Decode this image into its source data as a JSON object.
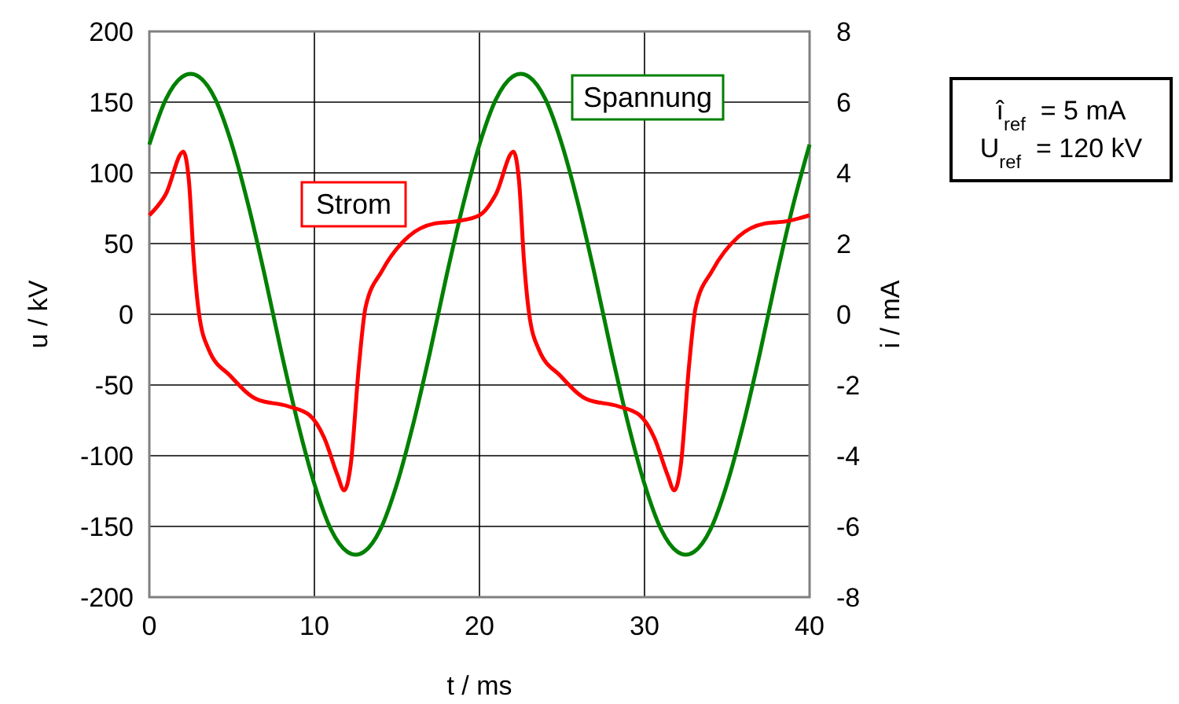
{
  "chart_data": {
    "type": "line",
    "xlabel": "t / ms",
    "ylabel": "u / kV",
    "y2label": "i / mA",
    "xlim": [
      0,
      40
    ],
    "xticks": [
      0,
      10,
      20,
      30,
      40
    ],
    "ylim": [
      -200,
      200
    ],
    "yticks": [
      -200,
      -150,
      -100,
      -50,
      0,
      50,
      100,
      150,
      200
    ],
    "y2lim": [
      -8,
      8
    ],
    "y2ticks": [
      -8,
      -6,
      -4,
      -2,
      0,
      2,
      4,
      6,
      8
    ],
    "grid": true,
    "annotations": [
      "î$_{ref}$  = 5 mA",
      "U$_{ref}$  = 120 kV"
    ],
    "series": [
      {
        "name": "Spannung",
        "color": "#008000",
        "x": [
          0,
          1,
          2,
          2.5,
          3,
          4,
          5,
          6,
          7,
          8,
          9,
          10,
          11,
          12,
          12.5,
          13,
          14,
          15,
          16,
          17,
          18,
          19,
          20,
          21,
          22,
          22.5,
          23,
          24,
          25,
          26,
          27,
          28,
          29,
          30,
          31,
          32,
          32.5,
          33,
          34,
          35,
          36,
          37,
          38,
          39,
          40
        ],
        "values": [
          120,
          152,
          168,
          170,
          168,
          152,
          120,
          77,
          27,
          -27,
          -77,
          -120,
          -152,
          -168,
          -170,
          -168,
          -152,
          -120,
          -77,
          -27,
          27,
          77,
          120,
          152,
          168,
          170,
          168,
          152,
          120,
          77,
          27,
          -27,
          -77,
          -120,
          -152,
          -168,
          -170,
          -168,
          -152,
          -120,
          -77,
          -27,
          27,
          77,
          120
        ]
      },
      {
        "name": "Strom",
        "color": "#ff0000",
        "axis": "y2",
        "x": [
          0,
          1,
          2.06,
          2.4,
          2.7,
          3.0,
          3.6,
          4.9,
          6.5,
          8.4,
          9.7,
          10.6,
          11.4,
          11.8,
          12.2,
          12.7,
          13.1,
          14.1,
          15.7,
          17.3,
          18.6,
          20,
          21,
          22.06,
          22.4,
          22.7,
          23.0,
          23.6,
          24.9,
          26.5,
          28.4,
          29.7,
          30.6,
          31.4,
          31.8,
          32.2,
          32.7,
          33.1,
          34.1,
          35.7,
          37.3,
          38.6,
          40
        ],
        "values": [
          2.8,
          3.4,
          4.6,
          3.76,
          1.5,
          0.05,
          -1.0,
          -1.74,
          -2.4,
          -2.6,
          -2.85,
          -3.5,
          -4.55,
          -4.98,
          -4.26,
          -1.44,
          0.2,
          1.23,
          2.2,
          2.57,
          2.63,
          2.8,
          3.4,
          4.6,
          3.76,
          1.5,
          0.05,
          -1.0,
          -1.74,
          -2.4,
          -2.6,
          -2.85,
          -3.5,
          -4.55,
          -4.98,
          -4.26,
          -1.44,
          0.2,
          1.23,
          2.2,
          2.57,
          2.63,
          2.8
        ]
      }
    ]
  }
}
